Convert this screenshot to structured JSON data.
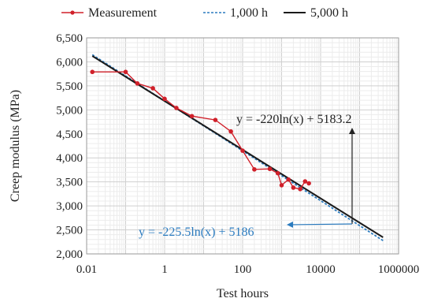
{
  "chart_data": {
    "type": "scatter",
    "xlabel": "Test hours",
    "ylabel": "Creep modulus (MPa)",
    "x_scale": "log",
    "xlim": [
      0.01,
      1000000
    ],
    "ylim": [
      2000,
      6500
    ],
    "x_ticks": [
      "0.01",
      "1",
      "100",
      "10000",
      "1000000"
    ],
    "y_ticks": [
      "2,000",
      "2,500",
      "3,000",
      "3,500",
      "4,000",
      "4,500",
      "5,000",
      "5,500",
      "6,000",
      "6,500"
    ],
    "grid": true,
    "legend_position": "top",
    "series": [
      {
        "name": "Measurement",
        "style": "line-markers",
        "color": "#d0202a",
        "x": [
          0.014,
          0.1,
          0.2,
          0.5,
          1,
          2,
          5,
          20,
          50,
          100,
          200,
          500,
          800,
          1000,
          1500,
          2000,
          3000,
          4000,
          5000
        ],
        "y": [
          5790,
          5790,
          5550,
          5450,
          5230,
          5040,
          4870,
          4790,
          4550,
          4150,
          3760,
          3770,
          3680,
          3430,
          3550,
          3380,
          3350,
          3510,
          3470
        ]
      },
      {
        "name": "1,000 h",
        "style": "dashed",
        "color": "#2b7bbf",
        "equation": "y = -225.5ln(x) + 5186",
        "slope": -225.5,
        "intercept": 5186,
        "x_range": [
          0.014,
          400000
        ]
      },
      {
        "name": "5,000 h",
        "style": "solid",
        "color": "#1a1a1a",
        "equation": "y = -220ln(x) + 5183.2",
        "slope": -220,
        "intercept": 5183.2,
        "x_range": [
          0.014,
          400000
        ]
      }
    ]
  }
}
